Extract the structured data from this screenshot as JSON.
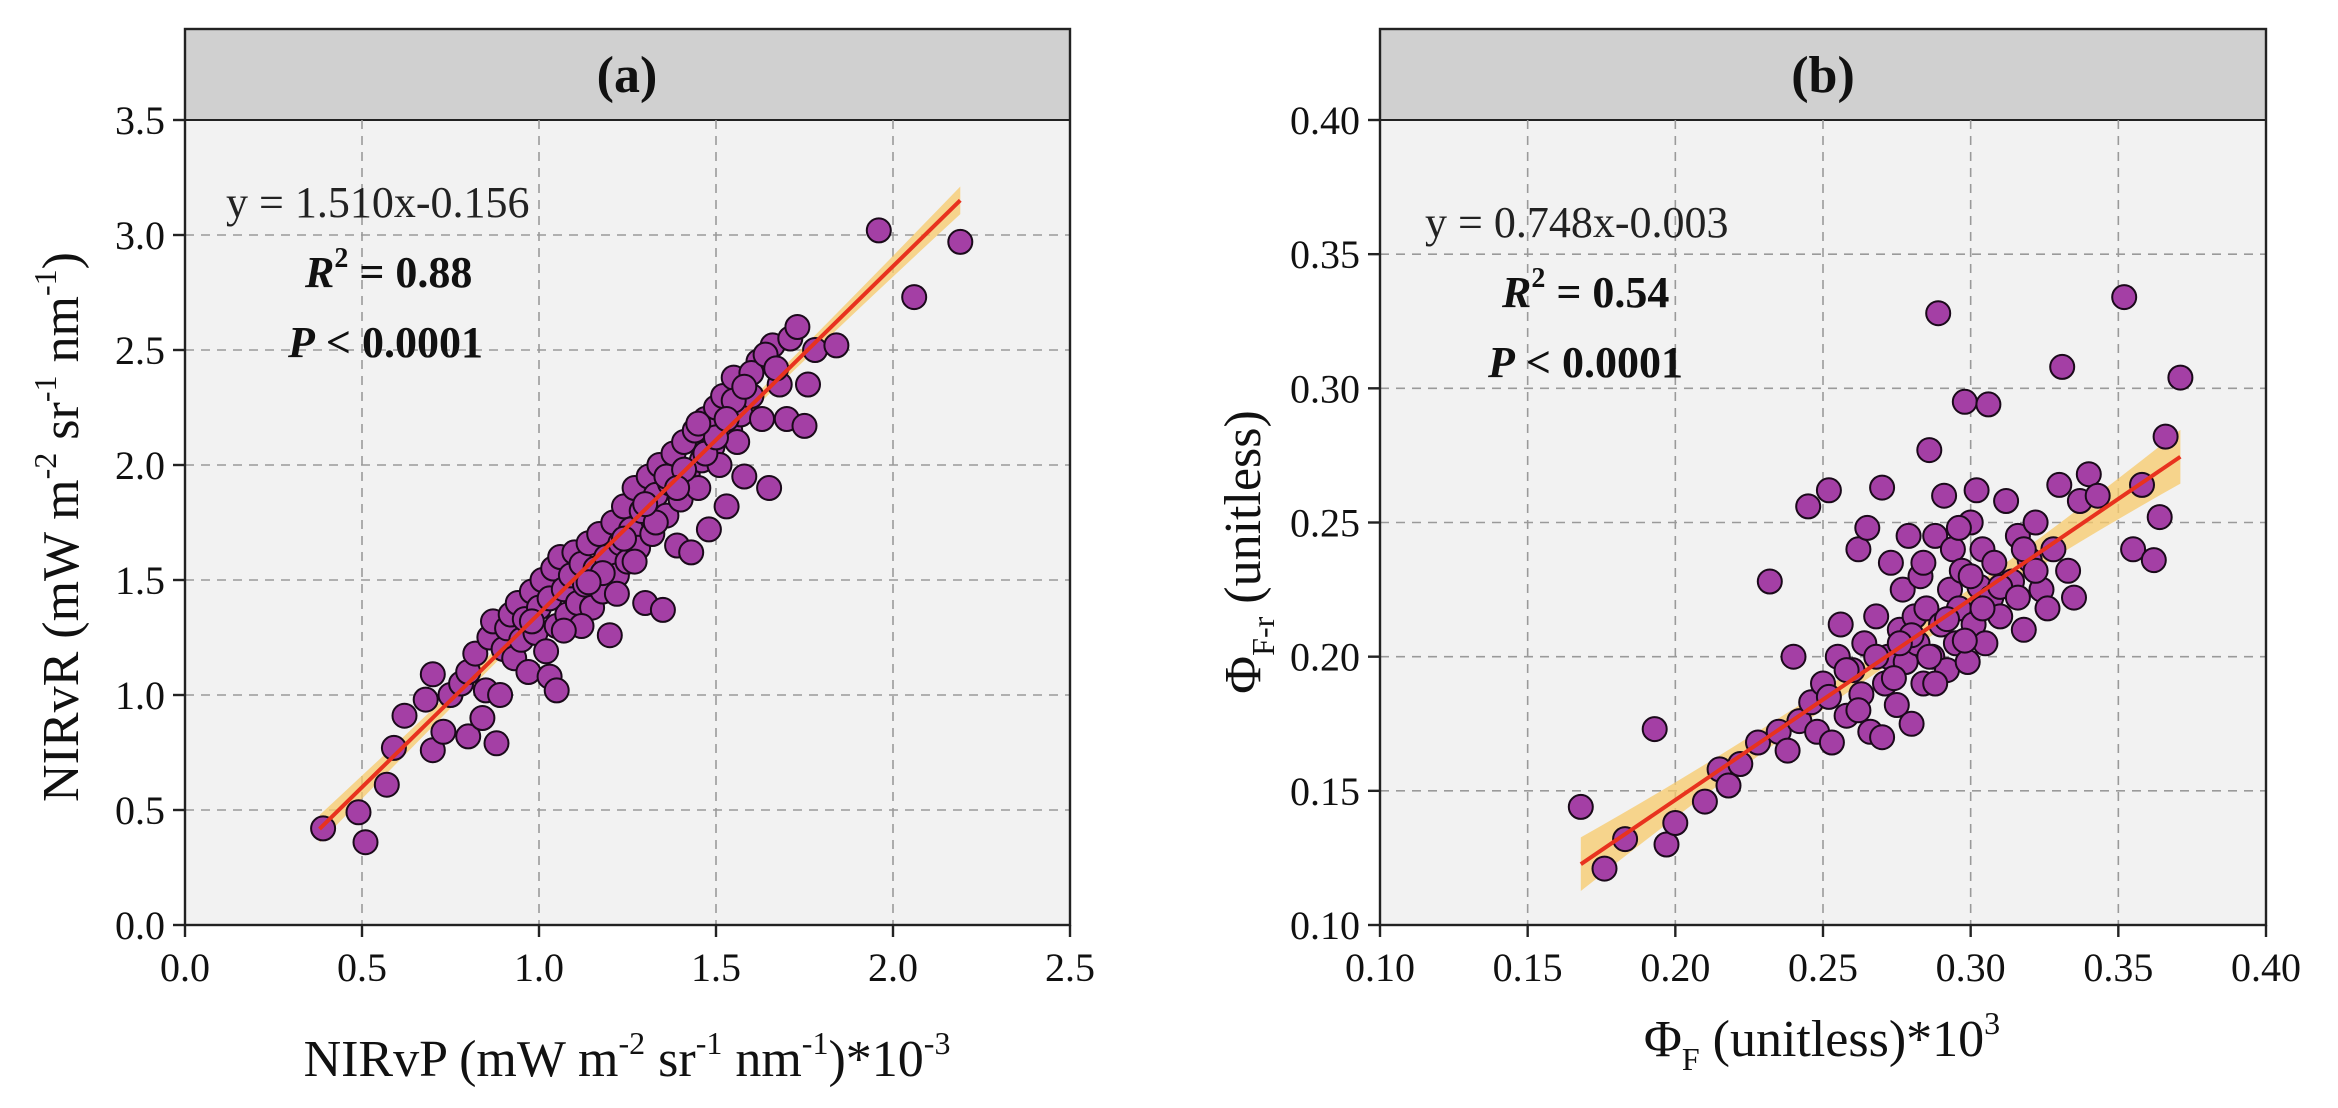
{
  "chart_data": [
    {
      "type": "scatter",
      "panel": "(a)",
      "xlabel": "NIRvP (mW m",
      "ylabel": "NIRvR (mW m",
      "xlim": [
        0.0,
        2.5
      ],
      "ylim": [
        0.0,
        3.5
      ],
      "xticks": [
        "0.0",
        "0.5",
        "1.0",
        "1.5",
        "2.0",
        "2.5"
      ],
      "yticks": [
        "0.0",
        "0.5",
        "1.0",
        "1.5",
        "2.0",
        "2.5",
        "3.0",
        "3.5"
      ],
      "equation": "y = 1.510x-0.156",
      "r2_label": "R",
      "r2_value": " = 0.88",
      "p_label": "P",
      "p_value": " < 0.0001",
      "fit": {
        "slope": 1.51,
        "intercept": -0.156,
        "x_range": [
          0.38,
          2.19
        ]
      },
      "points": [
        [
          0.39,
          0.42
        ],
        [
          0.49,
          0.49
        ],
        [
          0.51,
          0.36
        ],
        [
          0.57,
          0.61
        ],
        [
          0.59,
          0.77
        ],
        [
          0.62,
          0.91
        ],
        [
          0.68,
          0.98
        ],
        [
          0.7,
          1.09
        ],
        [
          0.7,
          0.76
        ],
        [
          0.73,
          0.84
        ],
        [
          0.75,
          1.0
        ],
        [
          0.78,
          1.05
        ],
        [
          0.8,
          1.1
        ],
        [
          0.8,
          0.82
        ],
        [
          0.82,
          1.18
        ],
        [
          0.84,
          0.9
        ],
        [
          0.85,
          1.02
        ],
        [
          0.86,
          1.25
        ],
        [
          0.87,
          1.32
        ],
        [
          0.88,
          0.79
        ],
        [
          0.89,
          1.0
        ],
        [
          0.9,
          1.2
        ],
        [
          0.91,
          1.29
        ],
        [
          0.92,
          1.35
        ],
        [
          0.93,
          1.16
        ],
        [
          0.94,
          1.4
        ],
        [
          0.95,
          1.24
        ],
        [
          0.96,
          1.33
        ],
        [
          0.97,
          1.1
        ],
        [
          0.98,
          1.45
        ],
        [
          0.99,
          1.27
        ],
        [
          1.0,
          1.38
        ],
        [
          1.01,
          1.5
        ],
        [
          1.02,
          1.19
        ],
        [
          1.03,
          1.08
        ],
        [
          1.03,
          1.42
        ],
        [
          1.04,
          1.55
        ],
        [
          1.05,
          1.02
        ],
        [
          1.05,
          1.3
        ],
        [
          1.06,
          1.6
        ],
        [
          1.07,
          1.46
        ],
        [
          1.08,
          1.35
        ],
        [
          1.09,
          1.52
        ],
        [
          1.1,
          1.62
        ],
        [
          1.11,
          1.4
        ],
        [
          1.12,
          1.57
        ],
        [
          1.13,
          1.48
        ],
        [
          1.14,
          1.66
        ],
        [
          1.15,
          1.38
        ],
        [
          1.16,
          1.55
        ],
        [
          1.17,
          1.7
        ],
        [
          1.18,
          1.45
        ],
        [
          1.19,
          1.6
        ],
        [
          1.2,
          1.26
        ],
        [
          1.21,
          1.75
        ],
        [
          1.22,
          1.52
        ],
        [
          1.23,
          1.66
        ],
        [
          1.24,
          1.82
        ],
        [
          1.25,
          1.58
        ],
        [
          1.26,
          1.72
        ],
        [
          1.27,
          1.9
        ],
        [
          1.28,
          1.64
        ],
        [
          1.29,
          1.8
        ],
        [
          1.3,
          1.4
        ],
        [
          1.31,
          1.95
        ],
        [
          1.32,
          1.7
        ],
        [
          1.33,
          1.87
        ],
        [
          1.34,
          2.0
        ],
        [
          1.35,
          1.37
        ],
        [
          1.36,
          1.78
        ],
        [
          1.37,
          1.92
        ],
        [
          1.38,
          2.05
        ],
        [
          1.39,
          1.65
        ],
        [
          1.4,
          1.85
        ],
        [
          1.41,
          2.1
        ],
        [
          1.42,
          1.96
        ],
        [
          1.43,
          1.62
        ],
        [
          1.44,
          2.15
        ],
        [
          1.45,
          1.9
        ],
        [
          1.46,
          2.02
        ],
        [
          1.47,
          2.2
        ],
        [
          1.48,
          1.72
        ],
        [
          1.49,
          2.08
        ],
        [
          1.5,
          2.25
        ],
        [
          1.51,
          2.0
        ],
        [
          1.52,
          2.3
        ],
        [
          1.53,
          1.82
        ],
        [
          1.54,
          2.15
        ],
        [
          1.55,
          2.38
        ],
        [
          1.56,
          2.1
        ],
        [
          1.57,
          2.22
        ],
        [
          1.58,
          1.95
        ],
        [
          1.6,
          2.3
        ],
        [
          1.62,
          2.45
        ],
        [
          1.63,
          2.2
        ],
        [
          1.65,
          1.9
        ],
        [
          1.66,
          2.52
        ],
        [
          1.68,
          2.35
        ],
        [
          1.7,
          2.2
        ],
        [
          1.71,
          2.55
        ],
        [
          1.73,
          2.6
        ],
        [
          1.75,
          2.17
        ],
        [
          1.76,
          2.35
        ],
        [
          1.78,
          2.5
        ],
        [
          1.84,
          2.52
        ],
        [
          1.96,
          3.02
        ],
        [
          2.06,
          2.73
        ],
        [
          2.19,
          2.97
        ],
        [
          1.12,
          1.3
        ],
        [
          1.18,
          1.53
        ],
        [
          1.22,
          1.44
        ],
        [
          1.27,
          1.58
        ],
        [
          1.33,
          1.75
        ],
        [
          1.36,
          1.95
        ],
        [
          1.41,
          1.98
        ],
        [
          1.47,
          2.05
        ],
        [
          1.5,
          2.12
        ],
        [
          1.55,
          2.28
        ],
        [
          1.6,
          2.4
        ],
        [
          1.64,
          2.48
        ],
        [
          1.07,
          1.28
        ],
        [
          0.98,
          1.32
        ],
        [
          1.14,
          1.49
        ],
        [
          1.24,
          1.68
        ],
        [
          1.3,
          1.83
        ],
        [
          1.39,
          1.9
        ],
        [
          1.45,
          2.18
        ],
        [
          1.53,
          2.2
        ],
        [
          1.58,
          2.34
        ],
        [
          1.67,
          2.42
        ]
      ]
    },
    {
      "type": "scatter",
      "panel": "(b)",
      "xlabel": "Φ",
      "ylabel": "Φ",
      "xlim": [
        0.1,
        0.4
      ],
      "ylim": [
        0.1,
        0.4
      ],
      "xticks": [
        "0.10",
        "0.15",
        "0.20",
        "0.25",
        "0.30",
        "0.35",
        "0.40"
      ],
      "yticks": [
        "0.10",
        "0.15",
        "0.20",
        "0.25",
        "0.30",
        "0.35",
        "0.40"
      ],
      "equation": "y = 0.748x-0.003",
      "r2_label": "R",
      "r2_value": " = 0.54",
      "p_label": "P",
      "p_value": " < 0.0001",
      "fit": {
        "slope": 0.748,
        "intercept": -0.003,
        "x_range": [
          0.168,
          0.371
        ]
      },
      "points": [
        [
          0.168,
          0.144
        ],
        [
          0.176,
          0.121
        ],
        [
          0.183,
          0.132
        ],
        [
          0.193,
          0.173
        ],
        [
          0.197,
          0.13
        ],
        [
          0.2,
          0.138
        ],
        [
          0.21,
          0.146
        ],
        [
          0.215,
          0.158
        ],
        [
          0.218,
          0.152
        ],
        [
          0.222,
          0.16
        ],
        [
          0.228,
          0.168
        ],
        [
          0.232,
          0.228
        ],
        [
          0.235,
          0.172
        ],
        [
          0.238,
          0.165
        ],
        [
          0.24,
          0.2
        ],
        [
          0.242,
          0.176
        ],
        [
          0.245,
          0.256
        ],
        [
          0.246,
          0.183
        ],
        [
          0.248,
          0.172
        ],
        [
          0.25,
          0.19
        ],
        [
          0.252,
          0.262
        ],
        [
          0.253,
          0.168
        ],
        [
          0.255,
          0.2
        ],
        [
          0.256,
          0.212
        ],
        [
          0.258,
          0.178
        ],
        [
          0.26,
          0.195
        ],
        [
          0.262,
          0.24
        ],
        [
          0.263,
          0.186
        ],
        [
          0.264,
          0.205
        ],
        [
          0.265,
          0.248
        ],
        [
          0.266,
          0.172
        ],
        [
          0.268,
          0.215
        ],
        [
          0.27,
          0.263
        ],
        [
          0.271,
          0.19
        ],
        [
          0.272,
          0.2
        ],
        [
          0.273,
          0.235
        ],
        [
          0.275,
          0.182
        ],
        [
          0.276,
          0.21
        ],
        [
          0.277,
          0.225
        ],
        [
          0.278,
          0.198
        ],
        [
          0.279,
          0.245
        ],
        [
          0.28,
          0.175
        ],
        [
          0.281,
          0.215
        ],
        [
          0.282,
          0.205
        ],
        [
          0.283,
          0.23
        ],
        [
          0.284,
          0.19
        ],
        [
          0.285,
          0.218
        ],
        [
          0.286,
          0.277
        ],
        [
          0.287,
          0.2
        ],
        [
          0.288,
          0.245
        ],
        [
          0.289,
          0.328
        ],
        [
          0.29,
          0.212
        ],
        [
          0.291,
          0.26
        ],
        [
          0.292,
          0.195
        ],
        [
          0.293,
          0.225
        ],
        [
          0.294,
          0.24
        ],
        [
          0.295,
          0.205
        ],
        [
          0.296,
          0.218
        ],
        [
          0.297,
          0.232
        ],
        [
          0.298,
          0.295
        ],
        [
          0.299,
          0.198
        ],
        [
          0.3,
          0.25
        ],
        [
          0.301,
          0.212
        ],
        [
          0.302,
          0.262
        ],
        [
          0.303,
          0.226
        ],
        [
          0.304,
          0.24
        ],
        [
          0.305,
          0.205
        ],
        [
          0.306,
          0.294
        ],
        [
          0.307,
          0.222
        ],
        [
          0.308,
          0.235
        ],
        [
          0.31,
          0.215
        ],
        [
          0.312,
          0.258
        ],
        [
          0.314,
          0.228
        ],
        [
          0.316,
          0.245
        ],
        [
          0.318,
          0.21
        ],
        [
          0.32,
          0.236
        ],
        [
          0.322,
          0.25
        ],
        [
          0.324,
          0.225
        ],
        [
          0.326,
          0.218
        ],
        [
          0.328,
          0.24
        ],
        [
          0.33,
          0.264
        ],
        [
          0.331,
          0.308
        ],
        [
          0.333,
          0.232
        ],
        [
          0.335,
          0.222
        ],
        [
          0.337,
          0.258
        ],
        [
          0.34,
          0.268
        ],
        [
          0.343,
          0.26
        ],
        [
          0.352,
          0.334
        ],
        [
          0.355,
          0.24
        ],
        [
          0.358,
          0.264
        ],
        [
          0.362,
          0.236
        ],
        [
          0.364,
          0.252
        ],
        [
          0.366,
          0.282
        ],
        [
          0.371,
          0.304
        ],
        [
          0.258,
          0.195
        ],
        [
          0.262,
          0.18
        ],
        [
          0.268,
          0.2
        ],
        [
          0.274,
          0.192
        ],
        [
          0.28,
          0.208
        ],
        [
          0.286,
          0.2
        ],
        [
          0.292,
          0.214
        ],
        [
          0.298,
          0.206
        ],
        [
          0.304,
          0.218
        ],
        [
          0.31,
          0.226
        ],
        [
          0.316,
          0.222
        ],
        [
          0.322,
          0.232
        ],
        [
          0.252,
          0.185
        ],
        [
          0.276,
          0.205
        ],
        [
          0.288,
          0.19
        ],
        [
          0.3,
          0.23
        ],
        [
          0.27,
          0.17
        ],
        [
          0.284,
          0.235
        ],
        [
          0.296,
          0.248
        ],
        [
          0.318,
          0.24
        ]
      ]
    }
  ],
  "stamp_text": "2 -1 -1 -2 -1 -1 -3 3 F-r F"
}
